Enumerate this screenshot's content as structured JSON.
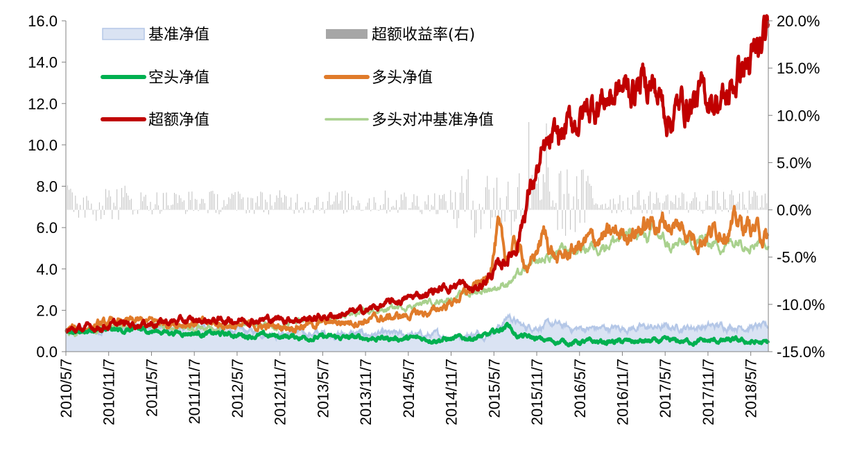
{
  "chart_data": {
    "type": "line",
    "title": "",
    "xlabel": "",
    "ylabel": "",
    "y2label": "",
    "ylim": [
      0,
      16
    ],
    "y2lim": [
      -15,
      20
    ],
    "yticks": [
      "0.0",
      "2.0",
      "4.0",
      "6.0",
      "8.0",
      "10.0",
      "12.0",
      "14.0",
      "16.0"
    ],
    "y2ticks": [
      "-15.0%",
      "-10.0%",
      "-5.0%",
      "0.0%",
      "5.0%",
      "10.0%",
      "15.0%",
      "20.0%"
    ],
    "categories": [
      "2010/5/7",
      "2010/11/7",
      "2011/5/7",
      "2011/11/7",
      "2012/5/7",
      "2012/11/7",
      "2013/5/7",
      "2013/11/7",
      "2014/5/7",
      "2014/11/7",
      "2015/5/7",
      "2015/11/7",
      "2016/5/7",
      "2016/11/7",
      "2017/5/7",
      "2017/11/7",
      "2018/5/7"
    ],
    "legend": [
      {
        "key": "benchmark",
        "label": "基准净值",
        "style": "area"
      },
      {
        "key": "excess_return",
        "label": "超额收益率(右)",
        "style": "bar"
      },
      {
        "key": "short",
        "label": "空头净值",
        "style": "line"
      },
      {
        "key": "long",
        "label": "多头净值",
        "style": "line"
      },
      {
        "key": "excess",
        "label": "超额净值",
        "style": "line"
      },
      {
        "key": "long_hedged",
        "label": "多头对冲基准净值",
        "style": "line"
      }
    ],
    "x_index": [
      0,
      3,
      5,
      8,
      10,
      12,
      15,
      17,
      20,
      22,
      25,
      28,
      30,
      32,
      35,
      37,
      40,
      42,
      45,
      48,
      50,
      52,
      55,
      57,
      60,
      62,
      65,
      68,
      70,
      72,
      75,
      77,
      80,
      82,
      85,
      88,
      90,
      92,
      95,
      97,
      100,
      102,
      105,
      108,
      110,
      112,
      115,
      117,
      120,
      122,
      125,
      128,
      130,
      132,
      135,
      137,
      140,
      142,
      145,
      148,
      150,
      152,
      155,
      157,
      160,
      162,
      165,
      168,
      170,
      172,
      175,
      177,
      180,
      182,
      185,
      188,
      190,
      192,
      195,
      197,
      200,
      202,
      205,
      208,
      210,
      212,
      215,
      217,
      220,
      222,
      225,
      228,
      230,
      232,
      235,
      237,
      240,
      242,
      245,
      248,
      250,
      252,
      255,
      257,
      260,
      262,
      265,
      268,
      270,
      272,
      275,
      277,
      280,
      282,
      285,
      288,
      290,
      292,
      295,
      297,
      300,
      302,
      305,
      308,
      310,
      312,
      315,
      317,
      320,
      322,
      325,
      328,
      330,
      332,
      335,
      337,
      340,
      342,
      345,
      348,
      350,
      352,
      355,
      357,
      360,
      362,
      365,
      368,
      370,
      372,
      375,
      377,
      380,
      382,
      385,
      388,
      390,
      392,
      395,
      397,
      400,
      402,
      405,
      408,
      410,
      412,
      415,
      417,
      420,
      422,
      425,
      428,
      430,
      432,
      435,
      437,
      440,
      442,
      445,
      448,
      450,
      452,
      455,
      457,
      460,
      462,
      465,
      468,
      470,
      472,
      475,
      477,
      480,
      482,
      485,
      488,
      490,
      492,
      495,
      497,
      500,
      502,
      505,
      508,
      510,
      512,
      515,
      517,
      520,
      522,
      525,
      528,
      530,
      532,
      535,
      537,
      540,
      542,
      545,
      548,
      550,
      552,
      555,
      557,
      560,
      562,
      565,
      568,
      570,
      572,
      575,
      577,
      580,
      582,
      585,
      588,
      590,
      592,
      595,
      597,
      600,
      602,
      605,
      608,
      610,
      612,
      615,
      617,
      620,
      622,
      625,
      628,
      630,
      632,
      635,
      637,
      640,
      642,
      645,
      648,
      650,
      652,
      655,
      657,
      660,
      662,
      665,
      668,
      670,
      672,
      675,
      677,
      680,
      682,
      685,
      688,
      690,
      692,
      695,
      697,
      700,
      702,
      705,
      708,
      710,
      712,
      715,
      717,
      720,
      722,
      725,
      728,
      730,
      732,
      735,
      737,
      740,
      742,
      745,
      748,
      750,
      752,
      755,
      757,
      760,
      762,
      765,
      768,
      770,
      772,
      775,
      777,
      780,
      782,
      785,
      788,
      790,
      792,
      795,
      797,
      800,
      802,
      805,
      808,
      810,
      812,
      815,
      817,
      820,
      822,
      825,
      828,
      830,
      832,
      835,
      837,
      840,
      842,
      845,
      848,
      850,
      852,
      855,
      857,
      860,
      862,
      865,
      868,
      870,
      872,
      875,
      877,
      880,
      882,
      885,
      888,
      890,
      892,
      895,
      897,
      900,
      902,
      905,
      908,
      910,
      912,
      915,
      917,
      920,
      922,
      925,
      928,
      930,
      932,
      935,
      937,
      940,
      942,
      945,
      948,
      950,
      952,
      955,
      957,
      960,
      962,
      965,
      968,
      970,
      972,
      975,
      977,
      980,
      982,
      985,
      988,
      990,
      992,
      995,
      997,
      1000,
      1002,
      1005,
      1008,
      1010,
      1012,
      1015,
      1017,
      1020,
      1022,
      1025,
      1028,
      1030,
      1032,
      1035,
      1037,
      1040,
      1042,
      1045,
      1048,
      1050,
      1052,
      1055,
      1057,
      1060,
      1062,
      1065,
      1068,
      1070,
      1072,
      1075,
      1077,
      1080,
      1082,
      1085,
      1088,
      1090,
      1092,
      1095,
      1097,
      1100,
      1102,
      1105,
      1108,
      1110,
      1112,
      1115,
      1117,
      1120,
      1122,
      1125,
      1128,
      1130,
      1132,
      1135,
      1137,
      1140,
      1142,
      1145,
      1148,
      1150,
      1152,
      1155,
      1157,
      1160,
      1162,
      1165,
      1168,
      1170,
      1172,
      1175,
      1177,
      1180,
      1182,
      1185,
      1188,
      1190,
      1192,
      1195,
      1197,
      1200,
      1202,
      1205,
      1208,
      1210,
      1212,
      1215,
      1217,
      1220,
      1222,
      1225,
      1228,
      1230,
      1232,
      1235,
      1237,
      1240,
      1242,
      1245,
      1248,
      1250,
      1252,
      1255,
      1257,
      1260,
      1262,
      1265,
      1268,
      1270,
      1272,
      1275,
      1277,
      1280,
      1282,
      1285,
      1288,
      1290,
      1292,
      1295,
      1297,
      1300,
      1302,
      1305,
      1308,
      1310,
      1312,
      1315,
      1317,
      1320,
      1322,
      1325,
      1328,
      1330,
      1332,
      1335,
      1337,
      1340,
      1342,
      1345,
      1348,
      1350,
      1352,
      1355,
      1357,
      1360,
      1362,
      1365,
      1368,
      1370,
      1372,
      1375,
      1377,
      1380,
      1382,
      1385,
      1388,
      1390,
      1392,
      1395,
      1397,
      1400,
      1402,
      1405,
      1408,
      1410,
      1412,
      1415,
      1417,
      1420,
      1422,
      1425,
      1428,
      1430,
      1432,
      1435,
      1437,
      1440,
      1442,
      1445,
      1448,
      1450,
      1452,
      1455,
      1457,
      1460,
      1462,
      1465,
      1468,
      1470,
      1472,
      1475,
      1477,
      1480,
      1482,
      1485,
      1488,
      1490,
      1492,
      1495,
      1497,
      1500,
      1502,
      1505,
      1508,
      1510,
      1512,
      1515,
      1517,
      1520,
      1522,
      1525,
      1528,
      1530,
      1532,
      1535,
      1537,
      1540,
      1542,
      1545,
      1548,
      1550,
      1552,
      1555,
      1557,
      1560,
      1562,
      1565,
      1568,
      1570,
      1572,
      1575,
      1577,
      1580,
      1582,
      1585,
      1588,
      1590,
      1592,
      1595,
      1597,
      1600,
      1602,
      1605,
      1608,
      1610,
      1612,
      1615,
      1617,
      1620,
      1622,
      1625,
      1628,
      1630,
      1632,
      1635,
      1637,
      1640,
      1642,
      1645,
      1648,
      1650,
      1652,
      1655,
      1657,
      1660,
      1662,
      1665,
      1668,
      1670,
      1672,
      1675,
      1677,
      1680,
      1682,
      1685,
      1688,
      1690,
      1692,
      1695,
      1697,
      1700,
      1702,
      1705,
      1708,
      1710,
      1712,
      1715,
      1717,
      1720,
      1722,
      1725,
      1728,
      1730,
      1732,
      1735,
      1737,
      1740,
      1742,
      1745,
      1748,
      1750,
      1752,
      1755,
      1757,
      1760,
      1762,
      1765,
      1768,
      1770,
      1772,
      1775,
      1777,
      1780,
      1782,
      1785,
      1788,
      1790,
      1792,
      1795,
      1797,
      1800,
      1802,
      1805,
      1808,
      1810,
      1812,
      1815,
      1817,
      1820,
      1822,
      1825,
      1828,
      1830,
      1832,
      1835,
      1837,
      1840,
      1842,
      1845,
      1848,
      1850,
      1852,
      1855,
      1857,
      1860,
      1862,
      1865,
      1868,
      1870,
      1872,
      1875,
      1877,
      1880,
      1882,
      1885,
      1888,
      1890,
      1892,
      1895,
      1897,
      1900,
      1902,
      1905,
      1908,
      1910,
      1912,
      1915,
      1917,
      1920,
      1922,
      1925,
      1928,
      1930,
      1932,
      1935,
      1937,
      1940,
      1942,
      1945,
      1948,
      1950,
      1952,
      1955,
      1957,
      1960,
      1962,
      1965,
      1968,
      1970,
      1972,
      1975,
      1977,
      1980,
      1982,
      1985,
      1988,
      1990,
      1992,
      1995,
      1997,
      2000,
      2002,
      2005,
      2008,
      2010,
      2012,
      2015,
      2017,
      2020,
      2022,
      2025,
      2028,
      2030,
      2032,
      2035,
      2037,
      2040,
      2042,
      2045,
      2048,
      2050,
      2052,
      2055,
      2057,
      2060,
      2062,
      2065,
      2068,
      2070,
      2072,
      2075,
      2077,
      2080,
      2082,
      2085,
      2088,
      2090,
      2092,
      2095,
      2097,
      2100,
      2102,
      2105,
      2108,
      2110,
      2112,
      2115,
      2117,
      2120,
      2122,
      2125,
      2128,
      2130,
      2132,
      2135,
      2137,
      2140,
      2142,
      2145,
      2148,
      2150,
      2152,
      2155,
      2157,
      2160,
      2162,
      2165,
      2168,
      2170,
      2172,
      2175,
      2177,
      2180,
      2182,
      2185,
      2188,
      2190,
      2192,
      2195,
      2197,
      2200,
      2202,
      2205,
      2208,
      2210,
      2212,
      2215,
      2217,
      2220,
      2222,
      2225,
      2228,
      2230,
      2232,
      2235,
      2237,
      2240,
      2242,
      2245,
      2248,
      2250,
      2252,
      2255,
      2257,
      2260,
      2262,
      2265,
      2268,
      2270,
      2272,
      2275,
      2277,
      2280,
      2282,
      2285,
      2288,
      2290,
      2292,
      2295,
      2297,
      2300,
      2302,
      2305,
      2308,
      2310,
      2312,
      2315,
      2317,
      2320,
      2322,
      2325,
      2328,
      2330,
      2332,
      2335,
      2337,
      2340,
      2342,
      2345,
      2348,
      2350,
      2352,
      2355,
      2357,
      2360,
      2362,
      2365,
      2368,
      2370,
      2372,
      2375,
      2377,
      2380,
      2382,
      2385,
      2388,
      2390,
      2392,
      2395,
      2397,
      2400,
      2402,
      2405,
      2408,
      2410,
      2412,
      2415,
      2417,
      2420,
      2422,
      2425,
      2428,
      2430,
      2432,
      2435,
      2437,
      2440,
      2442,
      2445,
      2448,
      2450,
      2452,
      2455,
      2457,
      2460,
      2462,
      2465,
      2468,
      2470,
      2472,
      2475,
      2477,
      2480,
      2482,
      2485,
      2488,
      2490,
      2492,
      2495,
      2497,
      2500,
      2502,
      2505,
      2508,
      2510,
      2512,
      2515,
      2517,
      2520,
      2522,
      2525,
      2528,
      2530,
      2532,
      2535,
      2537,
      2540,
      2542,
      2545,
      2548,
      2550,
      2552,
      2555,
      2557,
      2560,
      2562,
      2565,
      2568,
      2570,
      2572,
      2575,
      2577,
      2580,
      2582,
      2585,
      2588,
      2590,
      2592,
      2595,
      2597,
      2600,
      2602,
      2605,
      2608,
      2610,
      2612,
      2615,
      2617,
      2620,
      2622,
      2625,
      2628,
      2630,
      2632,
      2635,
      2637,
      2640,
      2642,
      2645,
      2648,
      2650,
      2652,
      2655,
      2657,
      2660,
      2662,
      2665,
      2668,
      2670,
      2672,
      2675,
      2677,
      2680,
      2682,
      2685,
      2688,
      2690,
      2692,
      2695,
      2697,
      2700,
      2702,
      2705,
      2708,
      2710,
      2712,
      2715,
      2717,
      2720,
      2722,
      2725,
      2728,
      2730,
      2732,
      2735,
      2737,
      2740,
      2742,
      2745,
      2748,
      2750,
      2752,
      2755,
      2757,
      2760,
      2762,
      2765,
      2768,
      2770,
      2772,
      2775,
      2777,
      2780,
      2782,
      2785,
      2788,
      2790,
      2792,
      2795,
      2797,
      2800,
      2802,
      2805,
      2808,
      2810,
      2812,
      2815,
      2817,
      2820,
      2822,
      2825,
      2828,
      2830,
      2832,
      2835,
      2837,
      2840,
      2842,
      2845,
      2848,
      2850,
      2852,
      2855,
      2857,
      2860,
      2862,
      2865,
      2868,
      2870,
      2872,
      2875,
      2877,
      2880,
      2882,
      2885,
      2888,
      2890,
      2892,
      2895,
      2897,
      2900,
      2902,
      2905,
      2908,
      2910,
      2912,
      2915,
      2917,
      2920,
      2922,
      2925,
      2928,
      2930,
      2932,
      2935,
      2937,
      2940,
      2942,
      2945,
      2948,
      2950,
      2952,
      2955,
      2957,
      2960,
      2962,
      2965,
      2968,
      2970,
      2972,
      2975,
      2977,
      2980,
      2982,
      2985,
      2988,
      2990,
      2992,
      2995,
      2997,
      3000,
      3002,
      3005,
      3008,
      3010,
      3012,
      3015,
      3017,
      3020,
      3022,
      3025,
      3028,
      3030,
      3032,
      3035,
      3037,
      3040,
      3042,
      3045,
      3048,
      3050,
      3052,
      3055,
      3057,
      3060,
      3062,
      3065,
      3068,
      3070,
      3072,
      3075,
      3077,
      3080,
      3082,
      3085,
      3088,
      3090,
      3092,
      3095,
      3097,
      3100,
      3102,
      3105,
      3108,
      3110,
      3112,
      3115,
      3117,
      3120,
      3122,
      3125,
      3128,
      3130,
      3132,
      3135,
      3137,
      3140,
      3142,
      3145,
      3148,
      3150,
      3152,
      3155,
      3157,
      3160,
      3162,
      3165,
      3168,
      3170,
      3172,
      3175,
      3177,
      3180,
      3182,
      3185,
      3188,
      3190,
      3192,
      3195,
      3197,
      3200,
      3202,
      3205,
      3208,
      3210,
      3212,
      3215,
      3217,
      3220,
      3222,
      3225,
      3228,
      3230,
      3232,
      3235,
      3237,
      3240,
      3242,
      3245,
      3248,
      3250,
      3252,
      3255,
      3257,
      3260,
      3262,
      3265,
      3268,
      3270,
      3272,
      3275,
      3277,
      3280,
      3282,
      3285,
      3288,
      3290,
      3292,
      3295,
      3297,
      3300
    ],
    "series": [
      {
        "key": "benchmark",
        "name": "基准净值",
        "color": "#dae3f3",
        "stroke": "#b4c7e7",
        "axis": "left"
      },
      {
        "key": "short",
        "name": "空头净值",
        "color": "#00b050",
        "axis": "left"
      },
      {
        "key": "long",
        "name": "多头净值",
        "color": "#e07b2a",
        "axis": "left"
      },
      {
        "key": "excess",
        "name": "超额净值",
        "color": "#c00000",
        "axis": "left"
      },
      {
        "key": "long_hedged",
        "name": "多头对冲基准净值",
        "color": "#a9d18e",
        "axis": "left"
      },
      {
        "key": "excess_return",
        "name": "超额收益率(右)",
        "color": "#a6a6a6",
        "axis": "right"
      }
    ]
  }
}
